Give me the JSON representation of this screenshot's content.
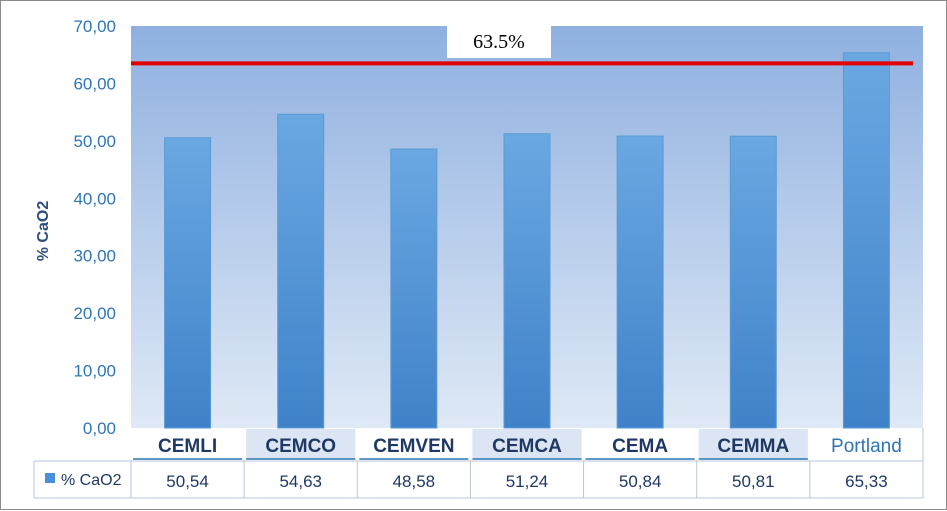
{
  "chart_data": {
    "type": "bar",
    "title": "",
    "ylabel": "% CaO2",
    "xlabel": "",
    "ylim": [
      0,
      70
    ],
    "ytick_step": 10,
    "ytick_labels": [
      "0,00",
      "10,00",
      "20,00",
      "30,00",
      "40,00",
      "50,00",
      "60,00",
      "70,00"
    ],
    "categories": [
      "CEMLI",
      "CEMCO",
      "CEMVEN",
      "CEMCA",
      "CEMA",
      "CEMMA",
      "Portland"
    ],
    "series": [
      {
        "name": "% CaO2",
        "values": [
          50.54,
          54.63,
          48.58,
          51.24,
          50.84,
          50.81,
          65.33
        ],
        "value_labels": [
          "50,54",
          "54,63",
          "48,58",
          "51,24",
          "50,84",
          "50,81",
          "65,33"
        ]
      }
    ],
    "reference_line": {
      "value": 63.5,
      "label": "63.5%",
      "color": "#e00000"
    },
    "data_table": true,
    "legend": "data-table",
    "grid": false,
    "colors": {
      "bar": "#4a90d9",
      "plot_background_top": "#8fb0e0",
      "plot_background_bottom": "#dce7f5",
      "axis_text": "#2e75b6"
    }
  }
}
